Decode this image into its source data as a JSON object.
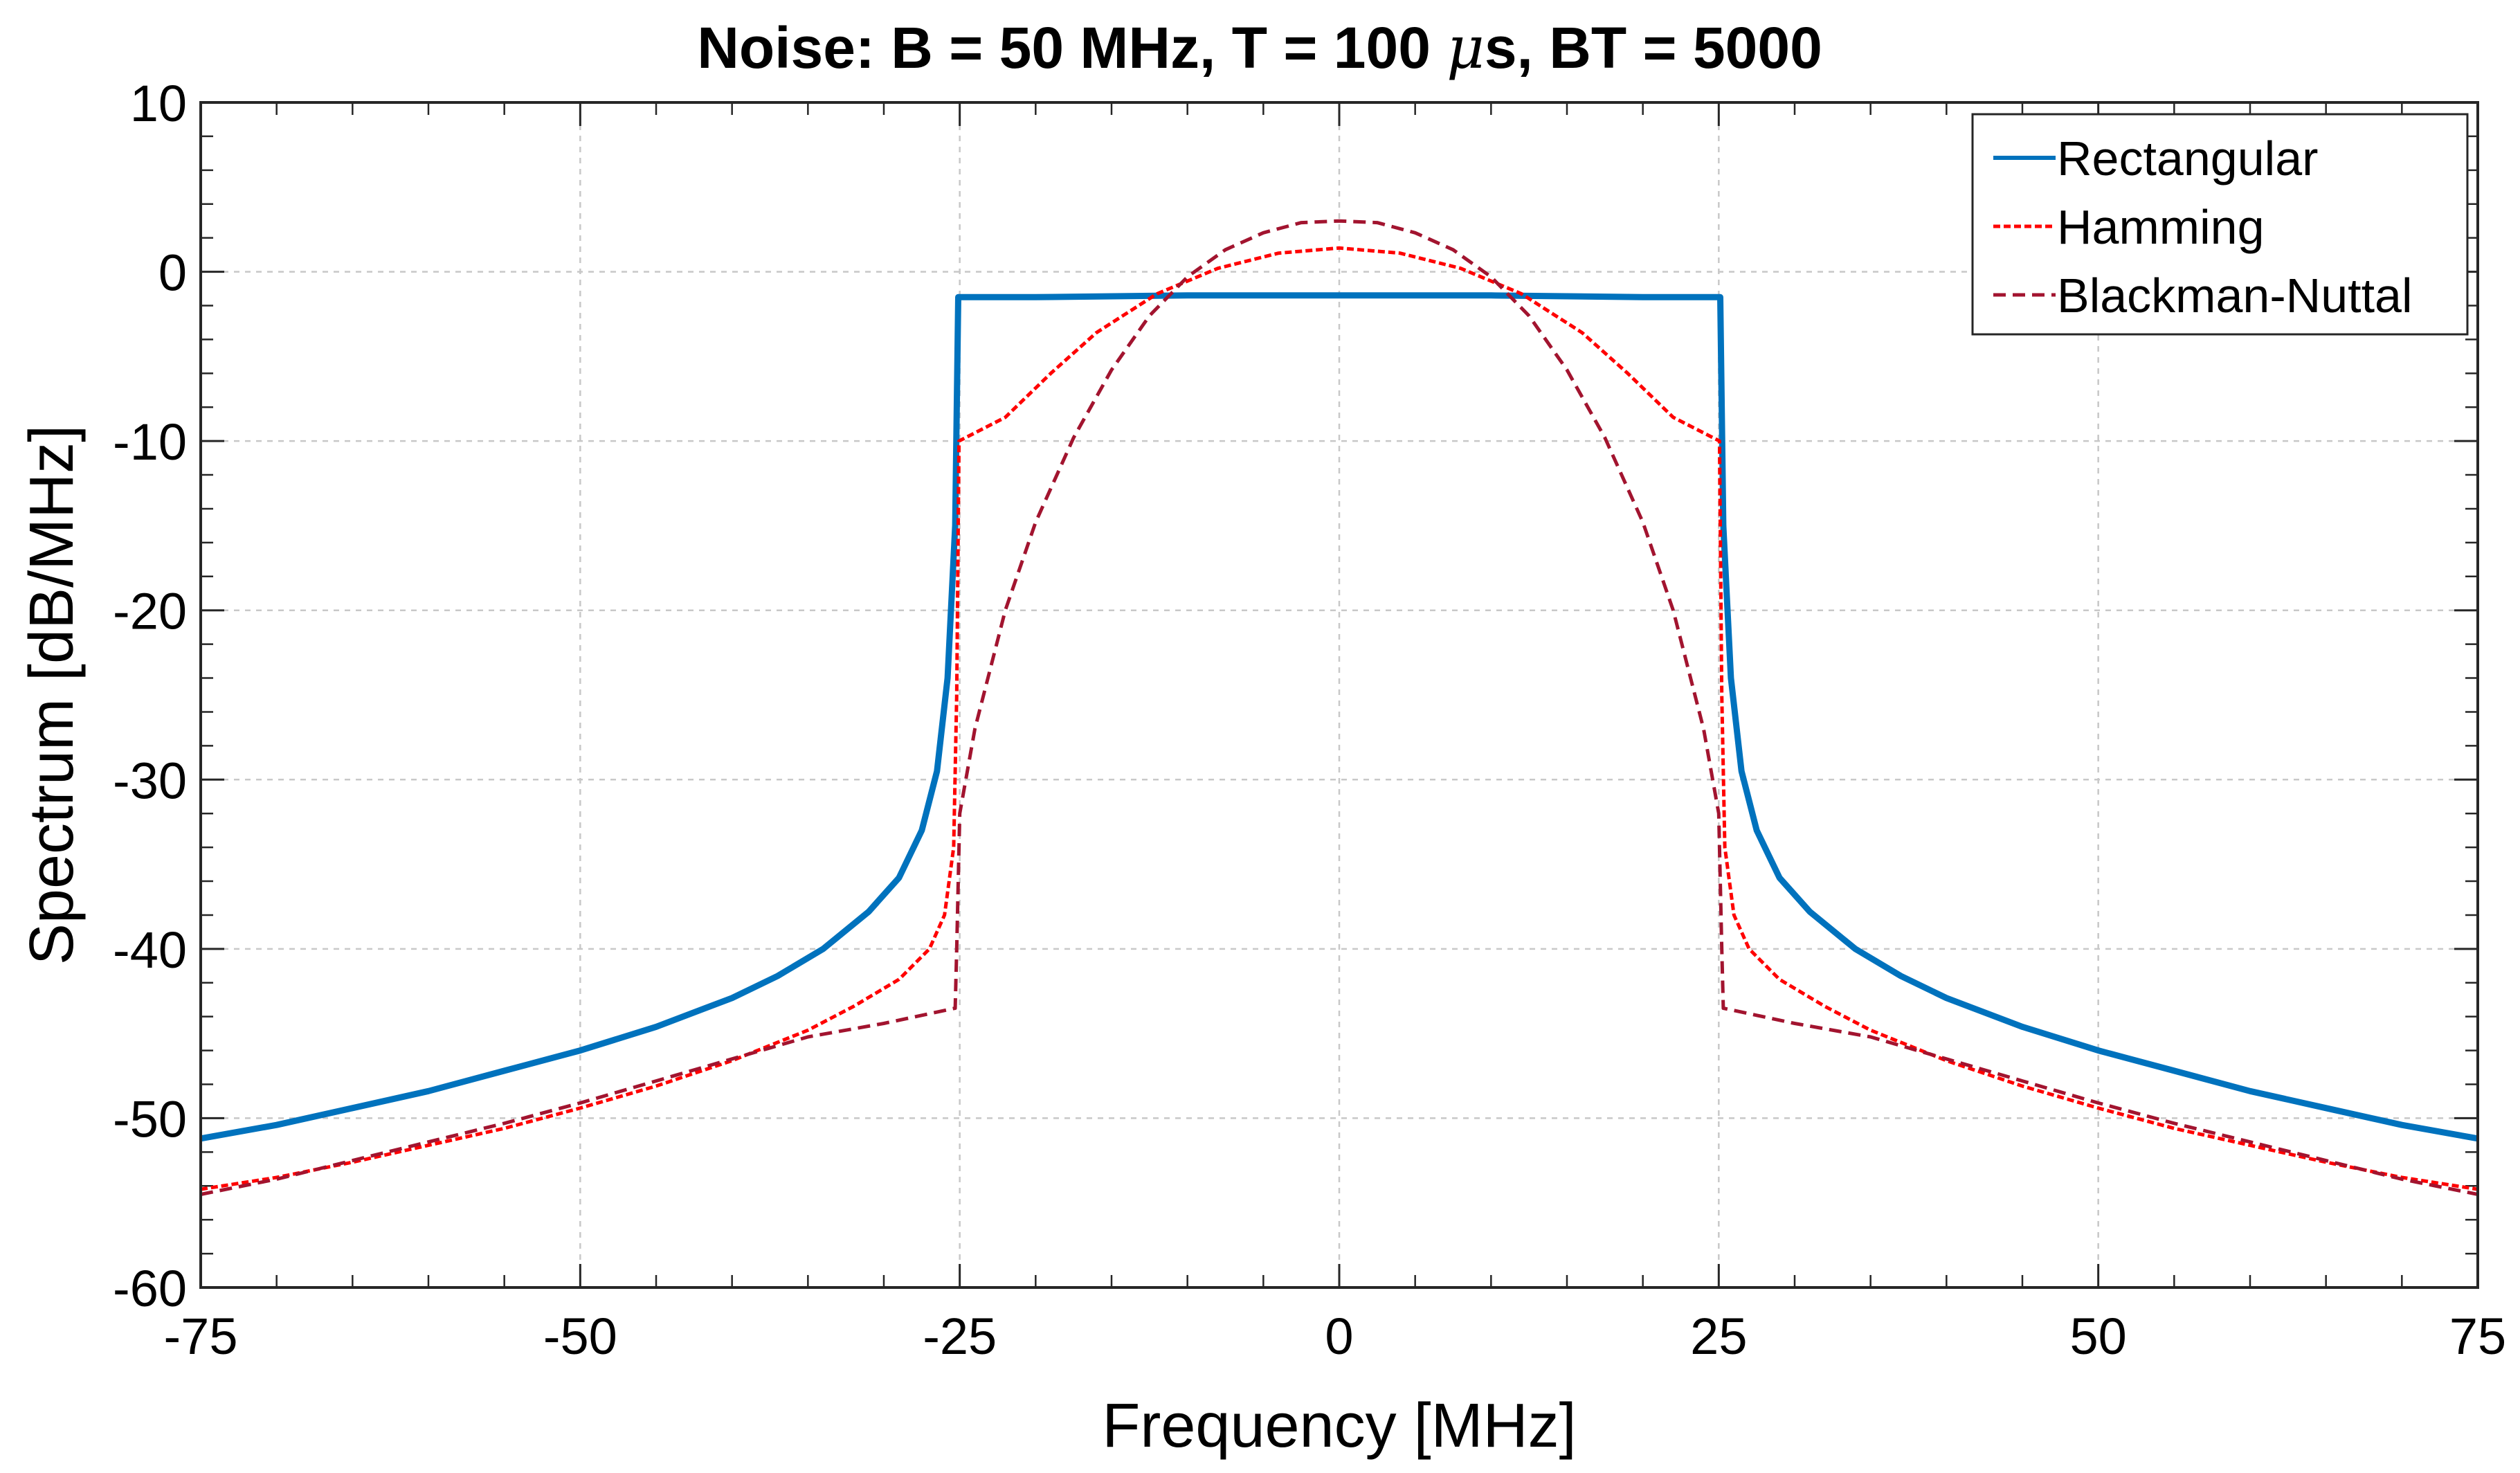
{
  "chart_data": {
    "type": "line",
    "title_prefix": "Noise: B = 50 MHz, T = 100 ",
    "title_mu": "μ",
    "title_suffix": "s, BT = 5000",
    "xlabel": "Frequency [MHz]",
    "ylabel": "Spectrum [dB/MHz]",
    "xlim": [
      -75,
      75
    ],
    "ylim": [
      -60,
      10
    ],
    "xticks": [
      -75,
      -50,
      -25,
      0,
      25,
      50,
      75
    ],
    "xtick_labels": [
      "-75",
      "-50",
      "-25",
      "0",
      "25",
      "50",
      "75"
    ],
    "yticks": [
      -60,
      -50,
      -40,
      -30,
      -20,
      -10,
      0,
      10
    ],
    "ytick_labels": [
      "-60",
      "-50",
      "-40",
      "-30",
      "-20",
      "-10",
      "0",
      "10"
    ],
    "grid": true,
    "legend_position": "top-right",
    "series": [
      {
        "name": "Rectangular",
        "color": "#0072BD",
        "style": "solid",
        "points": [
          [
            -75,
            -51.2
          ],
          [
            -70,
            -50.4
          ],
          [
            -65,
            -49.4
          ],
          [
            -60,
            -48.4
          ],
          [
            -55,
            -47.2
          ],
          [
            -50,
            -46.0
          ],
          [
            -45,
            -44.6
          ],
          [
            -40,
            -42.9
          ],
          [
            -37,
            -41.6
          ],
          [
            -34,
            -40.0
          ],
          [
            -31,
            -37.8
          ],
          [
            -29,
            -35.8
          ],
          [
            -27.5,
            -33.0
          ],
          [
            -26.5,
            -29.5
          ],
          [
            -25.8,
            -24.0
          ],
          [
            -25.3,
            -15.0
          ],
          [
            -25.1,
            -1.5
          ],
          [
            -20,
            -1.5
          ],
          [
            -10,
            -1.4
          ],
          [
            0,
            -1.4
          ],
          [
            10,
            -1.4
          ],
          [
            20,
            -1.5
          ],
          [
            25.1,
            -1.5
          ],
          [
            25.3,
            -15.0
          ],
          [
            25.8,
            -24.0
          ],
          [
            26.5,
            -29.5
          ],
          [
            27.5,
            -33.0
          ],
          [
            29,
            -35.8
          ],
          [
            31,
            -37.8
          ],
          [
            34,
            -40.0
          ],
          [
            37,
            -41.6
          ],
          [
            40,
            -42.9
          ],
          [
            45,
            -44.6
          ],
          [
            50,
            -46.0
          ],
          [
            55,
            -47.2
          ],
          [
            60,
            -48.4
          ],
          [
            65,
            -49.4
          ],
          [
            70,
            -50.4
          ],
          [
            75,
            -51.2
          ]
        ]
      },
      {
        "name": "Hamming",
        "color": "#FF0000",
        "style": "dotted",
        "points": [
          [
            -75,
            -54.2
          ],
          [
            -70,
            -53.5
          ],
          [
            -65,
            -52.6
          ],
          [
            -60,
            -51.6
          ],
          [
            -55,
            -50.6
          ],
          [
            -50,
            -49.4
          ],
          [
            -45,
            -48.1
          ],
          [
            -40,
            -46.6
          ],
          [
            -35,
            -44.8
          ],
          [
            -32,
            -43.4
          ],
          [
            -29,
            -41.8
          ],
          [
            -27,
            -40.0
          ],
          [
            -26,
            -38.0
          ],
          [
            -25.4,
            -34.0
          ],
          [
            -25.2,
            -25.0
          ],
          [
            -25.05,
            -10.0
          ],
          [
            -22,
            -8.6
          ],
          [
            -19,
            -6.0
          ],
          [
            -16,
            -3.6
          ],
          [
            -12,
            -1.3
          ],
          [
            -8,
            0.2
          ],
          [
            -4,
            1.1
          ],
          [
            0,
            1.4
          ],
          [
            4,
            1.1
          ],
          [
            8,
            0.2
          ],
          [
            12,
            -1.3
          ],
          [
            16,
            -3.6
          ],
          [
            19,
            -6.0
          ],
          [
            22,
            -8.6
          ],
          [
            25.05,
            -10.0
          ],
          [
            25.2,
            -25.0
          ],
          [
            25.4,
            -34.0
          ],
          [
            26,
            -38.0
          ],
          [
            27,
            -40.0
          ],
          [
            29,
            -41.8
          ],
          [
            32,
            -43.4
          ],
          [
            35,
            -44.8
          ],
          [
            40,
            -46.6
          ],
          [
            45,
            -48.1
          ],
          [
            50,
            -49.4
          ],
          [
            55,
            -50.6
          ],
          [
            60,
            -51.6
          ],
          [
            65,
            -52.6
          ],
          [
            70,
            -53.5
          ],
          [
            75,
            -54.2
          ]
        ]
      },
      {
        "name": "Blackman-Nuttal",
        "color": "#A2142F",
        "style": "dashed",
        "points": [
          [
            -75,
            -54.5
          ],
          [
            -70,
            -53.6
          ],
          [
            -65,
            -52.5
          ],
          [
            -60,
            -51.4
          ],
          [
            -55,
            -50.3
          ],
          [
            -50,
            -49.1
          ],
          [
            -45,
            -47.8
          ],
          [
            -40,
            -46.5
          ],
          [
            -35,
            -45.2
          ],
          [
            -30,
            -44.4
          ],
          [
            -25.3,
            -43.5
          ],
          [
            -25.2,
            -40.0
          ],
          [
            -25.0,
            -32.0
          ],
          [
            -24,
            -27.0
          ],
          [
            -22,
            -20.0
          ],
          [
            -20,
            -14.8
          ],
          [
            -17.5,
            -9.8
          ],
          [
            -15,
            -5.8
          ],
          [
            -12.5,
            -2.6
          ],
          [
            -10,
            -0.3
          ],
          [
            -7.5,
            1.3
          ],
          [
            -5,
            2.3
          ],
          [
            -2.5,
            2.9
          ],
          [
            0,
            3.0
          ],
          [
            2.5,
            2.9
          ],
          [
            5,
            2.3
          ],
          [
            7.5,
            1.3
          ],
          [
            10,
            -0.3
          ],
          [
            12.5,
            -2.6
          ],
          [
            15,
            -5.8
          ],
          [
            17.5,
            -9.8
          ],
          [
            20,
            -14.8
          ],
          [
            22,
            -20.0
          ],
          [
            24,
            -27.0
          ],
          [
            25.0,
            -32.0
          ],
          [
            25.2,
            -40.0
          ],
          [
            25.3,
            -43.5
          ],
          [
            30,
            -44.4
          ],
          [
            35,
            -45.2
          ],
          [
            40,
            -46.5
          ],
          [
            45,
            -47.8
          ],
          [
            50,
            -49.1
          ],
          [
            55,
            -50.3
          ],
          [
            60,
            -51.4
          ],
          [
            65,
            -52.5
          ],
          [
            70,
            -53.6
          ],
          [
            75,
            -54.5
          ]
        ]
      }
    ]
  }
}
